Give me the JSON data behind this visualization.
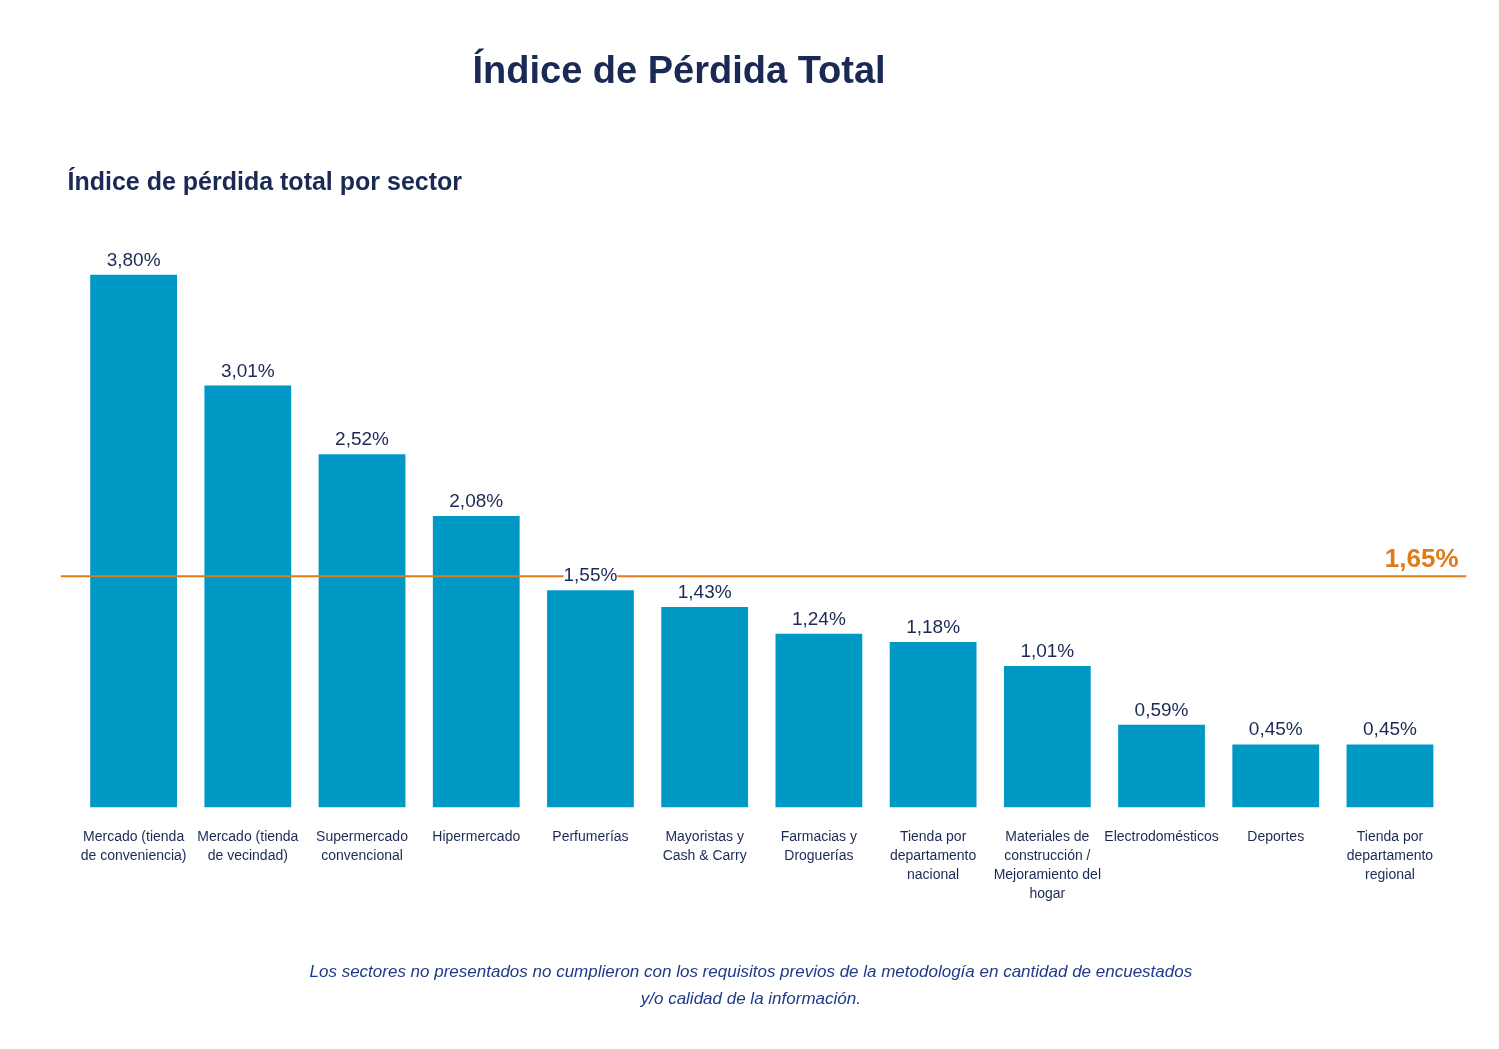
{
  "chart_data": {
    "type": "bar",
    "title": "Índice de Pérdida Total",
    "subtitle": "Índice de pérdida total por sector",
    "categories": [
      "Mercado (tienda de conveniencia)",
      "Mercado (tienda de vecindad)",
      "Supermercado convencional",
      "Hipermercado",
      "Perfumerías",
      "Mayoristas y Cash & Carry",
      "Farmacias y Droguerías",
      "Tienda por departamento nacional",
      "Materiales de construcción / Mejoramiento del hogar",
      "Electrodomésticos",
      "Deportes",
      "Tienda por departamento regional"
    ],
    "values": [
      3.8,
      3.01,
      2.52,
      2.08,
      1.55,
      1.43,
      1.24,
      1.18,
      1.01,
      0.59,
      0.45,
      0.45
    ],
    "color": "#0099c6",
    "value_labels": [
      "3,80%",
      "3,01%",
      "2,52%",
      "2,08%",
      "1,55%",
      "1,43%",
      "1,24%",
      "1,18%",
      "1,01%",
      "0,59%",
      "0,45%",
      "0,45%"
    ],
    "ref_lines": [
      {
        "axis": "y",
        "value": 1.65,
        "label": "1,65%",
        "color": "#e07b1a"
      }
    ],
    "tick_labels": "x",
    "annotations": [
      "Los sectores no presentados no cumplieron con los requisitos previos de la metodología en cantidad de encuestados y/o calidad de la información."
    ]
  }
}
